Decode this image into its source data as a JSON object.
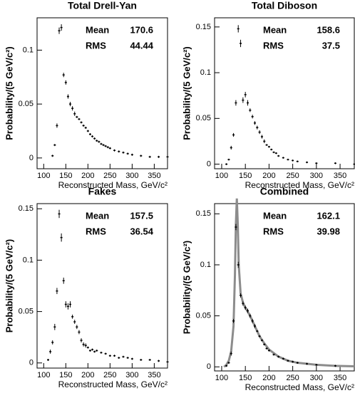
{
  "chart_data": [
    {
      "type": "scatter",
      "title": "Total Drell-Yan",
      "xlabel": "Reconstructed Mass, GeV/c²",
      "ylabel": "Probability/(5 GeV/c²)",
      "stats": [
        {
          "label": "Mean",
          "value": 170.6
        },
        {
          "label": "RMS",
          "value": 44.44
        }
      ],
      "color": "#000000",
      "xlim": [
        85,
        380
      ],
      "xticks": [
        100,
        150,
        200,
        250,
        300,
        350
      ],
      "ylim": [
        -0.01,
        0.13
      ],
      "yticks": [
        0,
        0.05,
        0.1
      ],
      "x": [
        120,
        125,
        130,
        135,
        140,
        145,
        150,
        155,
        160,
        165,
        170,
        175,
        180,
        185,
        190,
        195,
        200,
        205,
        210,
        215,
        220,
        225,
        230,
        235,
        240,
        245,
        250,
        260,
        270,
        280,
        290,
        300,
        320,
        340,
        360,
        380
      ],
      "values": [
        0.002,
        0.012,
        0.03,
        0.118,
        0.121,
        0.077,
        0.07,
        0.057,
        0.05,
        0.046,
        0.041,
        0.038,
        0.036,
        0.033,
        0.03,
        0.028,
        0.025,
        0.022,
        0.02,
        0.018,
        0.016,
        0.015,
        0.013,
        0.012,
        0.011,
        0.01,
        0.009,
        0.007,
        0.006,
        0.005,
        0.004,
        0.003,
        0.002,
        0.001,
        0.001,
        0.001
      ],
      "errors": [
        0.001,
        0.001,
        0.002,
        0.003,
        0.003,
        0.002,
        0.002,
        0.002,
        0.002,
        0.002,
        0.002,
        0.001,
        0.001,
        0.001,
        0.001,
        0.001,
        0.001,
        0.001,
        0.001,
        0.001,
        0.001,
        0.001,
        0.001,
        0.001,
        0.001,
        0.001,
        0.001,
        0.001,
        0.001,
        0.001,
        0.001,
        0.001,
        0.001,
        0.001,
        0.001,
        0.001
      ]
    },
    {
      "type": "scatter",
      "title": "Total Diboson",
      "xlabel": "Reconstructed Mass, GeV/c²",
      "ylabel": "Probability/(5 GeV/c²)",
      "stats": [
        {
          "label": "Mean",
          "value": 158.6
        },
        {
          "label": "RMS",
          "value": 37.5
        }
      ],
      "color": "#000000",
      "xlim": [
        85,
        380
      ],
      "xticks": [
        100,
        150,
        200,
        250,
        300,
        350
      ],
      "ylim": [
        -0.005,
        0.16
      ],
      "yticks": [
        0,
        0.05,
        0.1,
        0.15
      ],
      "x": [
        110,
        115,
        120,
        125,
        130,
        135,
        140,
        145,
        150,
        155,
        160,
        165,
        170,
        175,
        180,
        185,
        190,
        195,
        200,
        205,
        210,
        215,
        220,
        230,
        240,
        250,
        260,
        280,
        300,
        340,
        380
      ],
      "values": [
        0.0,
        0.005,
        0.018,
        0.032,
        0.067,
        0.148,
        0.132,
        0.07,
        0.076,
        0.067,
        0.059,
        0.052,
        0.045,
        0.04,
        0.035,
        0.03,
        0.025,
        0.021,
        0.019,
        0.016,
        0.013,
        0.012,
        0.009,
        0.007,
        0.005,
        0.004,
        0.003,
        0.002,
        0.001,
        0.001,
        0.0
      ],
      "errors": [
        0.001,
        0.001,
        0.002,
        0.002,
        0.003,
        0.004,
        0.004,
        0.003,
        0.003,
        0.003,
        0.002,
        0.002,
        0.002,
        0.002,
        0.002,
        0.002,
        0.002,
        0.001,
        0.001,
        0.001,
        0.001,
        0.001,
        0.001,
        0.001,
        0.001,
        0.001,
        0.001,
        0.001,
        0.001,
        0.001,
        0.001
      ]
    },
    {
      "type": "scatter",
      "title": "Fakes",
      "xlabel": "Reconstructed Mass, GeV/c²",
      "ylabel": "Probability/(5 GeV/c²)",
      "stats": [
        {
          "label": "Mean",
          "value": 157.5
        },
        {
          "label": "RMS",
          "value": 36.54
        }
      ],
      "color": "#000000",
      "xlim": [
        85,
        380
      ],
      "xticks": [
        100,
        150,
        200,
        250,
        300,
        350
      ],
      "ylim": [
        -0.005,
        0.155
      ],
      "yticks": [
        0,
        0.05,
        0.1,
        0.15
      ],
      "x": [
        110,
        115,
        120,
        125,
        130,
        135,
        140,
        145,
        150,
        155,
        160,
        165,
        170,
        175,
        180,
        185,
        190,
        195,
        200,
        205,
        210,
        215,
        220,
        230,
        240,
        250,
        260,
        270,
        280,
        290,
        300,
        320,
        340,
        360,
        380
      ],
      "values": [
        0.003,
        0.011,
        0.02,
        0.035,
        0.07,
        0.145,
        0.122,
        0.08,
        0.057,
        0.055,
        0.057,
        0.045,
        0.04,
        0.035,
        0.03,
        0.022,
        0.018,
        0.017,
        0.015,
        0.012,
        0.013,
        0.011,
        0.012,
        0.01,
        0.009,
        0.007,
        0.007,
        0.005,
        0.006,
        0.005,
        0.004,
        0.003,
        0.003,
        0.002,
        0.001
      ],
      "errors": [
        0.001,
        0.002,
        0.002,
        0.003,
        0.003,
        0.004,
        0.004,
        0.003,
        0.003,
        0.003,
        0.003,
        0.002,
        0.002,
        0.002,
        0.002,
        0.002,
        0.002,
        0.002,
        0.001,
        0.001,
        0.001,
        0.001,
        0.001,
        0.001,
        0.001,
        0.001,
        0.001,
        0.001,
        0.001,
        0.001,
        0.001,
        0.001,
        0.001,
        0.001,
        0.001
      ]
    },
    {
      "type": "scatter",
      "title": "Combined",
      "xlabel": "Reconstructed Mass, GeV/c²",
      "ylabel": "Probability/(5 GeV/c²)",
      "stats": [
        {
          "label": "Mean",
          "value": 162.1
        },
        {
          "label": "RMS",
          "value": 39.98
        }
      ],
      "color": "#000000",
      "xlim": [
        85,
        380
      ],
      "xticks": [
        100,
        150,
        200,
        250,
        300,
        350
      ],
      "ylim": [
        -0.004,
        0.16
      ],
      "yticks": [
        0,
        0.05,
        0.1,
        0.15
      ],
      "x": [
        110,
        115,
        120,
        125,
        130,
        135,
        140,
        145,
        150,
        155,
        160,
        165,
        170,
        175,
        180,
        185,
        190,
        195,
        200,
        210,
        220,
        230,
        240,
        250,
        260,
        280,
        300,
        340
      ],
      "values": [
        0.001,
        0.004,
        0.013,
        0.045,
        0.137,
        0.1,
        0.07,
        0.062,
        0.058,
        0.055,
        0.05,
        0.045,
        0.04,
        0.035,
        0.03,
        0.026,
        0.022,
        0.018,
        0.016,
        0.012,
        0.01,
        0.008,
        0.006,
        0.005,
        0.004,
        0.003,
        0.002,
        0.001
      ],
      "errors": [
        0.001,
        0.001,
        0.002,
        0.002,
        0.003,
        0.003,
        0.002,
        0.002,
        0.002,
        0.002,
        0.002,
        0.002,
        0.002,
        0.001,
        0.001,
        0.001,
        0.001,
        0.001,
        0.001,
        0.001,
        0.001,
        0.001,
        0.001,
        0.001,
        0.001,
        0.001,
        0.001,
        0.001
      ],
      "curve": {
        "color": "#8c8c8c",
        "x": [
          105,
          110,
          115,
          120,
          125,
          128,
          130,
          132,
          134,
          136,
          140,
          145,
          150,
          160,
          170,
          180,
          190,
          200,
          220,
          240,
          260,
          300,
          340,
          380
        ],
        "values": [
          0,
          0.002,
          0.006,
          0.015,
          0.04,
          0.09,
          0.14,
          0.165,
          0.14,
          0.1,
          0.072,
          0.063,
          0.058,
          0.05,
          0.04,
          0.03,
          0.023,
          0.017,
          0.01,
          0.006,
          0.004,
          0.002,
          0.001,
          0.0005
        ]
      }
    }
  ]
}
